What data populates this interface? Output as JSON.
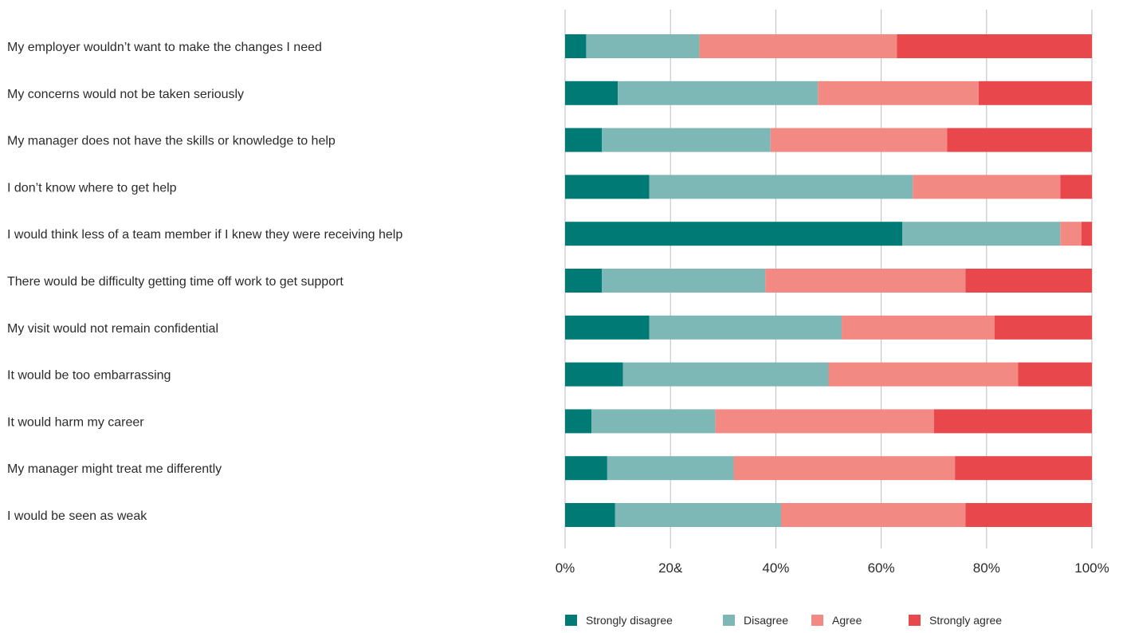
{
  "chart_data": {
    "type": "bar",
    "orientation": "horizontal",
    "stacked": true,
    "percent_stacked": true,
    "title": "",
    "xlabel": "",
    "ylabel": "",
    "xlim": [
      0,
      100
    ],
    "x_ticks": [
      0,
      20,
      40,
      60,
      80,
      100
    ],
    "x_tick_labels": [
      "0%",
      "20&",
      "40%",
      "60%",
      "80%",
      "100%"
    ],
    "grid": "vertical",
    "legend_position": "bottom",
    "categories": [
      "My employer wouldn’t want to make the changes I need",
      "My concerns would not be taken seriously",
      "My manager does not have the skills or knowledge to help",
      "I don’t know where to get help",
      "I would think less of a team member if I knew they were receiving help",
      "There would be difficulty getting time off work to get support",
      "My visit would not remain confidential",
      "It would be too embarrassing",
      "It would harm my career",
      "My manager might treat me differently",
      "I would be seen as weak"
    ],
    "series": [
      {
        "name": "Strongly disagree",
        "color": "#007a74",
        "values": [
          4,
          10,
          7,
          16,
          64,
          7,
          16,
          11,
          5,
          8,
          9.5
        ]
      },
      {
        "name": "Disagree",
        "color": "#7eb8b6",
        "values": [
          21.5,
          38,
          32,
          50,
          30,
          31,
          36.5,
          39,
          23.5,
          24,
          31.5
        ]
      },
      {
        "name": "Agree",
        "color": "#f28a83",
        "values": [
          37.5,
          30.5,
          33.5,
          28,
          4,
          38,
          29,
          36,
          41.5,
          42,
          35
        ]
      },
      {
        "name": "Strongly agree",
        "color": "#e8484b",
        "values": [
          37,
          21.5,
          27.5,
          6,
          2,
          24,
          18.5,
          14,
          30,
          26,
          24
        ]
      }
    ]
  }
}
